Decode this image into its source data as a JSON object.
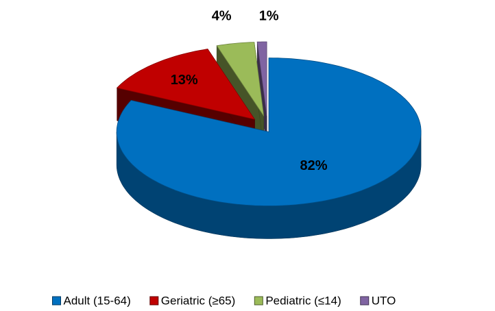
{
  "chart_data": {
    "type": "pie3d",
    "categories": [
      "Adult (15-64)",
      "Geriatric (≥65)",
      "Pediatric (≤14)",
      "UTO"
    ],
    "values": [
      82,
      13,
      4,
      1
    ],
    "value_labels": [
      "82%",
      "13%",
      "4%",
      "1%"
    ],
    "colors": [
      "#0070c0",
      "#c00000",
      "#9bbb59",
      "#8064a2"
    ],
    "legend": "bottom"
  }
}
